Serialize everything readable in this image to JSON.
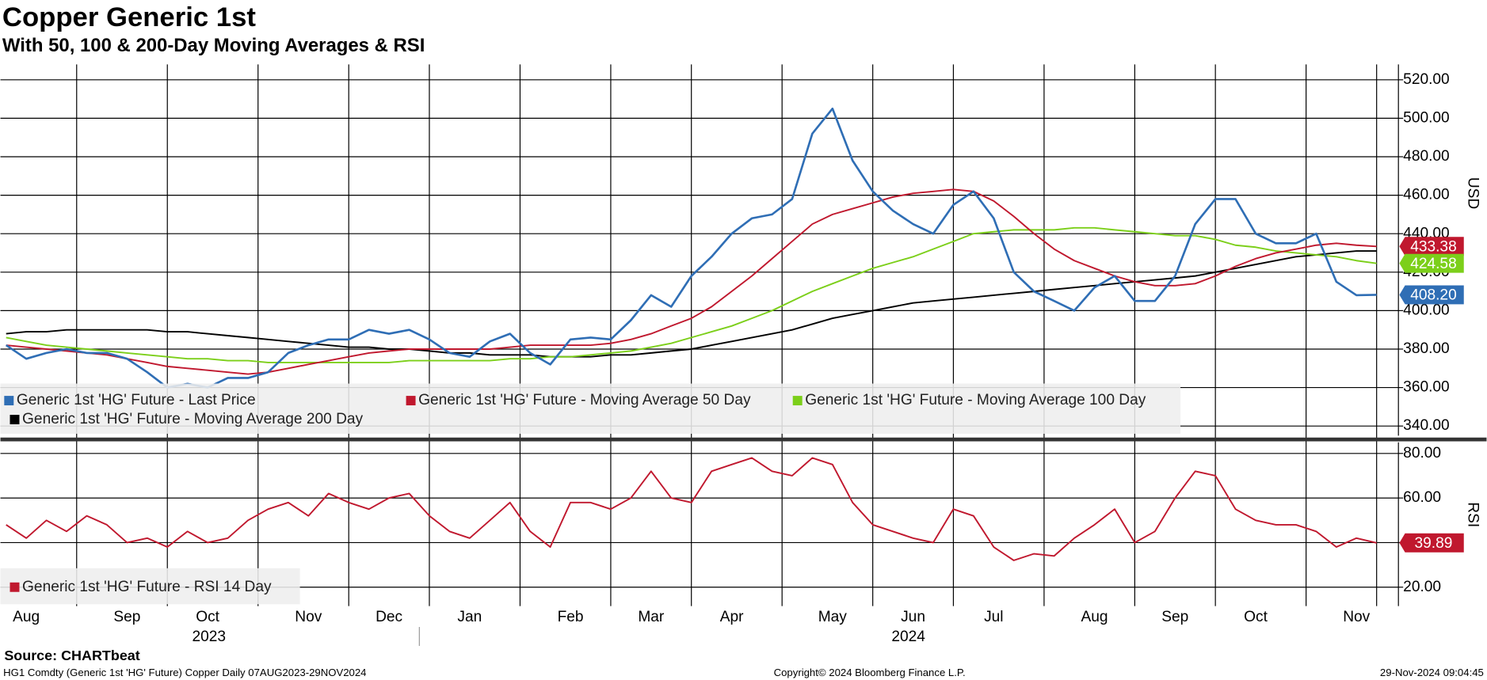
{
  "title": "Copper Generic 1st",
  "subtitle": "With 50, 100 & 200-Day Moving Averages & RSI",
  "source": "Source: CHARTbeat",
  "footer": [
    "HG1 Comdty (Generic 1st 'HG' Future) Copper  Daily 07AUG2023-29NOV2024",
    "Copyright© 2024 Bloomberg Finance L.P.",
    "29-Nov-2024 09:04:45"
  ],
  "chart_data": [
    {
      "type": "line",
      "y_label": "USD",
      "categories": [
        null,
        "Aug",
        null,
        null,
        null,
        null,
        "Sep",
        null,
        null,
        null,
        "Oct",
        null,
        null,
        null,
        null,
        "Nov",
        null,
        null,
        null,
        "Dec",
        null,
        null,
        null,
        "Jan",
        null,
        null,
        null,
        null,
        "Feb",
        null,
        null,
        null,
        "Mar",
        null,
        null,
        null,
        "Apr",
        null,
        null,
        null,
        null,
        "May",
        null,
        null,
        null,
        "Jun",
        null,
        null,
        null,
        "Jul",
        null,
        null,
        null,
        null,
        "Aug",
        null,
        null,
        null,
        "Sep",
        null,
        null,
        null,
        "Oct",
        null,
        null,
        null,
        null,
        "Nov",
        null
      ],
      "x_group_labels": [
        "2023",
        "2024"
      ],
      "ylim": [
        335,
        528
      ],
      "yticks": [
        {
          "value": 340,
          "label": "340.00"
        },
        {
          "value": 360,
          "label": "360.00"
        },
        {
          "value": 380,
          "label": "380.00"
        },
        {
          "value": 400,
          "label": "400.00"
        },
        {
          "value": 420,
          "label": "420.00"
        },
        {
          "value": 440,
          "label": "440.00"
        },
        {
          "value": 460,
          "label": "460.00"
        },
        {
          "value": 480,
          "label": "480.00"
        },
        {
          "value": 500,
          "label": "500.00"
        },
        {
          "value": 520,
          "label": "520.00"
        }
      ],
      "grid": true,
      "series": [
        {
          "name": "Generic 1st 'HG' Future - Last Price",
          "color": "#2f6eb5",
          "end_label": "408.20",
          "values": [
            382,
            375,
            378,
            380,
            378,
            378,
            375,
            368,
            360,
            362,
            360,
            365,
            365,
            368,
            378,
            382,
            385,
            385,
            390,
            388,
            390,
            385,
            378,
            376,
            384,
            388,
            378,
            372,
            385,
            386,
            385,
            395,
            408,
            402,
            418,
            428,
            440,
            448,
            450,
            458,
            492,
            505,
            478,
            462,
            452,
            445,
            440,
            455,
            462,
            448,
            420,
            410,
            405,
            400,
            412,
            418,
            405,
            405,
            418,
            445,
            458,
            458,
            440,
            435,
            435,
            440,
            415,
            408,
            408.2
          ]
        },
        {
          "name": "Generic 1st 'HG' Future - Moving Average 50 Day",
          "color": "#c0182e",
          "end_label": "433.38",
          "values": [
            382,
            381,
            380,
            379,
            378,
            377,
            375,
            373,
            371,
            370,
            369,
            368,
            367,
            368,
            370,
            372,
            374,
            376,
            378,
            379,
            380,
            380,
            380,
            380,
            380,
            381,
            382,
            382,
            382,
            382,
            383,
            385,
            388,
            392,
            396,
            402,
            410,
            418,
            427,
            436,
            445,
            450,
            453,
            456,
            459,
            461,
            462,
            463,
            462,
            457,
            449,
            440,
            432,
            426,
            422,
            418,
            415,
            413,
            413,
            414,
            418,
            423,
            427,
            430,
            432,
            434,
            435,
            434,
            433.38
          ]
        },
        {
          "name": "Generic 1st 'HG' Future - Moving Average 100 Day",
          "color": "#7ccf1a",
          "end_label": "424.58",
          "values": [
            386,
            384,
            382,
            381,
            380,
            379,
            378,
            377,
            376,
            375,
            375,
            374,
            374,
            373,
            373,
            373,
            373,
            373,
            373,
            373,
            374,
            374,
            374,
            374,
            374,
            375,
            375,
            376,
            376,
            377,
            378,
            379,
            381,
            383,
            386,
            389,
            392,
            396,
            400,
            405,
            410,
            414,
            418,
            422,
            425,
            428,
            432,
            436,
            440,
            441,
            442,
            442,
            442,
            443,
            443,
            442,
            441,
            440,
            439,
            439,
            437,
            434,
            433,
            431,
            430,
            429,
            428,
            426,
            424.58
          ]
        },
        {
          "name": "Generic 1st 'HG' Future - Moving Average 200 Day",
          "color": "#000000",
          "values": [
            388,
            389,
            389,
            390,
            390,
            390,
            390,
            390,
            389,
            389,
            388,
            387,
            386,
            385,
            384,
            383,
            382,
            381,
            381,
            380,
            380,
            379,
            378,
            378,
            377,
            377,
            377,
            376,
            376,
            376,
            377,
            377,
            378,
            379,
            380,
            382,
            384,
            386,
            388,
            390,
            393,
            396,
            398,
            400,
            402,
            404,
            405,
            406,
            407,
            408,
            409,
            410,
            411,
            412,
            413,
            414,
            415,
            416,
            417,
            418,
            420,
            422,
            424,
            426,
            428,
            429,
            430,
            431,
            431
          ]
        }
      ]
    },
    {
      "type": "line",
      "y_label": "RSI",
      "ylim": [
        11.5,
        85
      ],
      "yticks": [
        {
          "value": 20,
          "label": "20.00"
        },
        {
          "value": 40,
          "label": "40.00"
        },
        {
          "value": 60,
          "label": "60.00"
        },
        {
          "value": 80,
          "label": "80.00"
        }
      ],
      "grid": true,
      "series": [
        {
          "name": "Generic 1st 'HG' Future - RSI 14 Day",
          "color": "#c0182e",
          "end_label": "39.89",
          "values": [
            48,
            42,
            50,
            45,
            52,
            48,
            40,
            42,
            38,
            45,
            40,
            42,
            50,
            55,
            58,
            52,
            62,
            58,
            55,
            60,
            62,
            52,
            45,
            42,
            50,
            58,
            45,
            38,
            58,
            58,
            55,
            60,
            72,
            60,
            58,
            72,
            75,
            78,
            72,
            70,
            78,
            75,
            58,
            48,
            45,
            42,
            40,
            55,
            52,
            38,
            32,
            35,
            34,
            42,
            48,
            55,
            40,
            45,
            60,
            72,
            70,
            55,
            50,
            48,
            48,
            45,
            38,
            42,
            39.89
          ]
        }
      ]
    }
  ]
}
